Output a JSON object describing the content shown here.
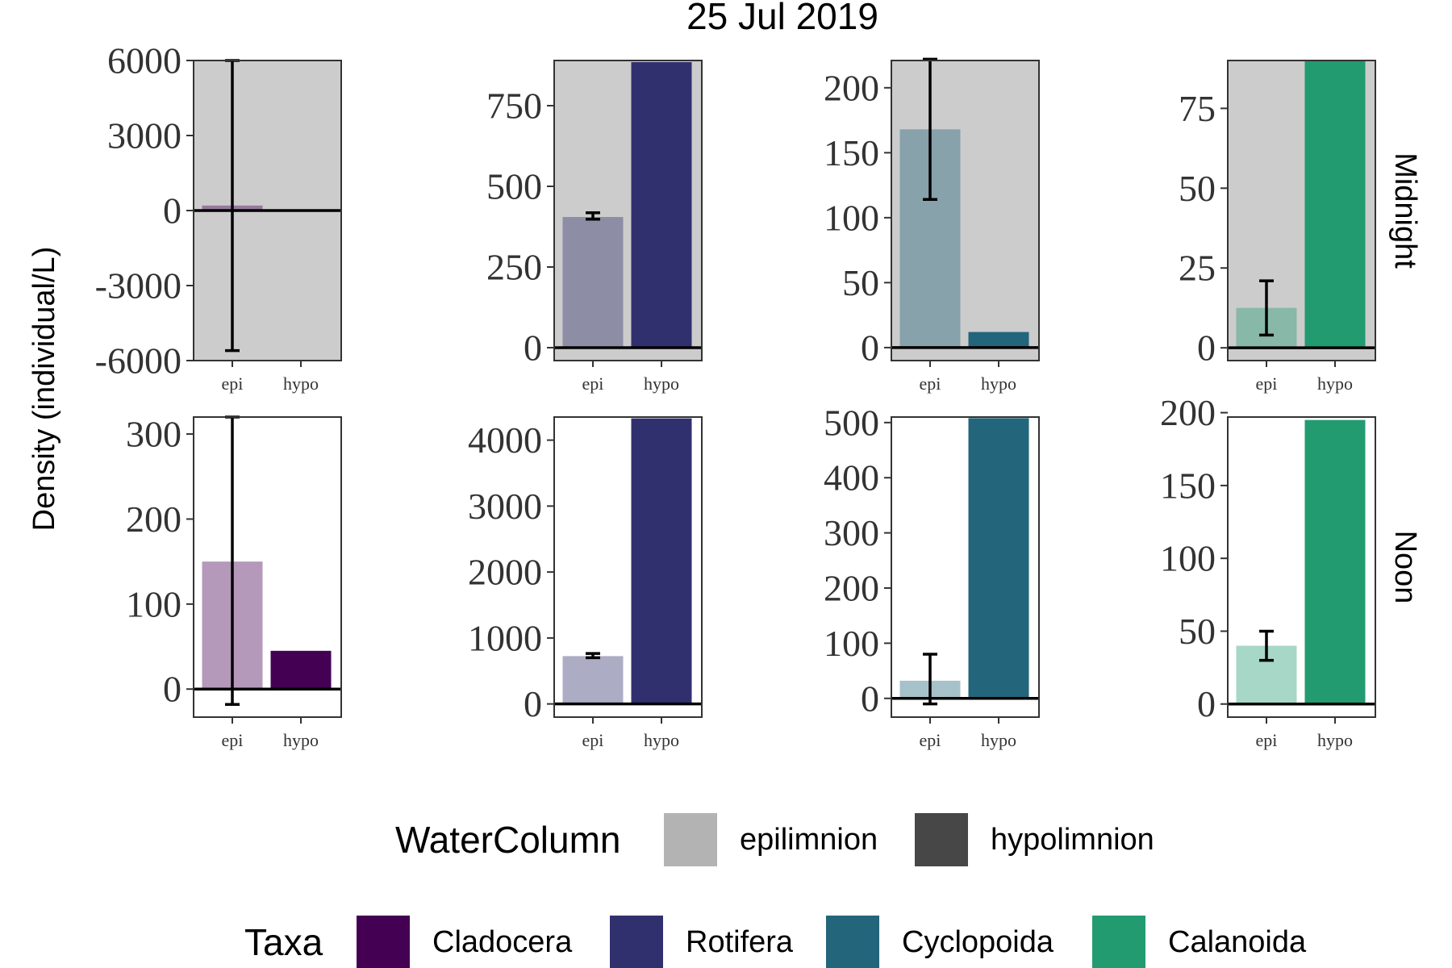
{
  "chart_data": {
    "type": "bar",
    "title": "25 Jul 2019",
    "ylabel": "Density (individual/L)",
    "xlabel": "",
    "categories": [
      "epi",
      "hypo"
    ],
    "rows": [
      "Midnight",
      "Noon"
    ],
    "taxa": [
      "Cladocera",
      "Rotifera",
      "Cyclopoida",
      "Calanoida"
    ],
    "panels": [
      {
        "row": "Midnight",
        "taxon": "Cladocera",
        "ylim": [
          -6000,
          6000
        ],
        "ticks": [
          6000,
          3000,
          0,
          -3000,
          -6000
        ],
        "tick_labels": [
          "6000",
          "3000",
          "0",
          "-3000",
          "-6000"
        ],
        "background": "#cccccc",
        "values": [
          200,
          0
        ],
        "errors": [
          [
            -5600,
            6000
          ],
          null
        ]
      },
      {
        "row": "Midnight",
        "taxon": "Rotifera",
        "ylim": [
          -40,
          890
        ],
        "ticks": [
          0,
          250,
          500,
          750
        ],
        "tick_labels": [
          "0",
          "250",
          "500",
          "750"
        ],
        "background": "#cccccc",
        "values": [
          405,
          885
        ],
        "errors": [
          [
            398,
            418
          ],
          null
        ]
      },
      {
        "row": "Midnight",
        "taxon": "Cyclopoida",
        "ylim": [
          -10,
          221
        ],
        "ticks": [
          0,
          50,
          100,
          150,
          200
        ],
        "tick_labels": [
          "0",
          "50",
          "100",
          "150",
          "200"
        ],
        "background": "#cccccc",
        "values": [
          168,
          12
        ],
        "errors": [
          [
            114,
            222
          ],
          null
        ]
      },
      {
        "row": "Midnight",
        "taxon": "Calanoida",
        "ylim": [
          -4,
          90
        ],
        "ticks": [
          0,
          25,
          50,
          75
        ],
        "tick_labels": [
          "0",
          "25",
          "50",
          "75"
        ],
        "background": "#cccccc",
        "values": [
          12.5,
          90
        ],
        "errors": [
          [
            4,
            21
          ],
          null
        ]
      },
      {
        "row": "Noon",
        "taxon": "Cladocera",
        "ylim": [
          -33,
          320
        ],
        "ticks": [
          0,
          100,
          200,
          300
        ],
        "tick_labels": [
          "0",
          "100",
          "200",
          "300"
        ],
        "background": "#ffffff",
        "values": [
          150,
          45
        ],
        "errors": [
          [
            -18,
            320
          ],
          null
        ]
      },
      {
        "row": "Noon",
        "taxon": "Rotifera",
        "ylim": [
          -200,
          4350
        ],
        "ticks": [
          0,
          1000,
          2000,
          3000,
          4000
        ],
        "tick_labels": [
          "0",
          "1000",
          "2000",
          "3000",
          "4000"
        ],
        "background": "#ffffff",
        "values": [
          725,
          4330
        ],
        "errors": [
          [
            700,
            765
          ],
          null
        ]
      },
      {
        "row": "Noon",
        "taxon": "Cyclopoida",
        "ylim": [
          -34,
          510
        ],
        "ticks": [
          0,
          100,
          200,
          300,
          400,
          500
        ],
        "tick_labels": [
          "0",
          "100",
          "200",
          "300",
          "400",
          "500"
        ],
        "background": "#ffffff",
        "values": [
          32,
          508
        ],
        "errors": [
          [
            -10,
            80
          ],
          null
        ]
      },
      {
        "row": "Noon",
        "taxon": "Calanoida",
        "ylim": [
          -9,
          197
        ],
        "ticks": [
          0,
          50,
          100,
          150,
          200
        ],
        "tick_labels": [
          "0",
          "50",
          "100",
          "150",
          "200"
        ],
        "background": "#ffffff",
        "values": [
          40,
          195
        ],
        "errors": [
          [
            30,
            50
          ],
          null
        ]
      }
    ],
    "colors": {
      "Cladocera": "#440154",
      "Rotifera": "#31306e",
      "Cyclopoida": "#23657a",
      "Calanoida": "#229b71"
    },
    "epi_alpha": 0.4,
    "legend": {
      "placement": "bottom",
      "water_column": {
        "title": "WaterColumn",
        "entries": [
          {
            "label": "epilimnion",
            "color": "#b3b3b3"
          },
          {
            "label": "hypolimnion",
            "color": "#474747"
          }
        ]
      },
      "taxa": {
        "title": "Taxa",
        "entries": [
          {
            "label": "Cladocera",
            "color": "#440154"
          },
          {
            "label": "Rotifera",
            "color": "#31306e"
          },
          {
            "label": "Cyclopoida",
            "color": "#23657a"
          },
          {
            "label": "Calanoida",
            "color": "#229b71"
          }
        ]
      }
    }
  }
}
